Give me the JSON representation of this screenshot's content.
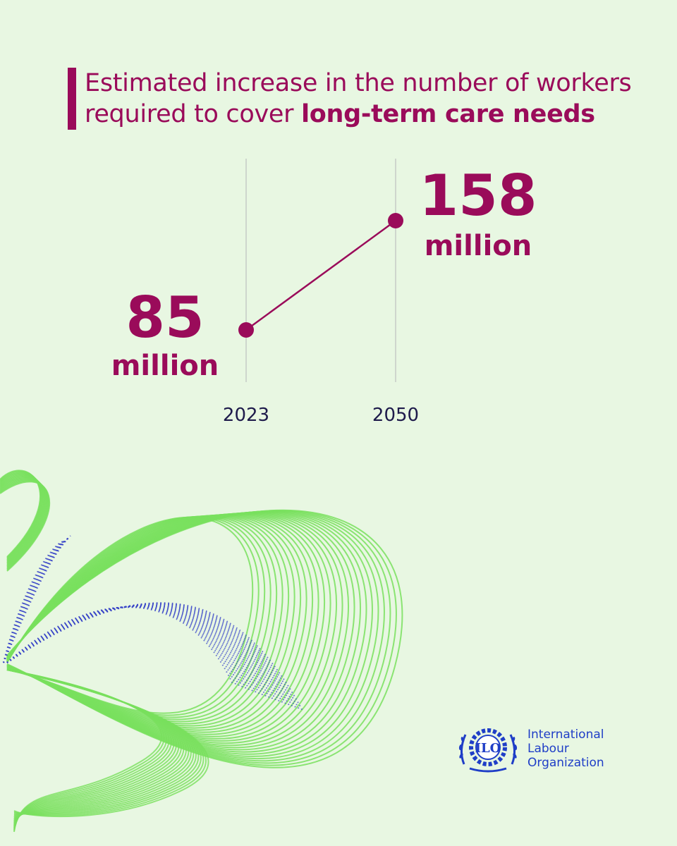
{
  "title": {
    "line1": "Estimated increase in the number of workers",
    "line2_prefix": "required to cover ",
    "line2_bold": "long-term care needs"
  },
  "chart_data": {
    "type": "line",
    "title": "Estimated increase in the number of workers required to cover long-term care needs",
    "x": [
      "2023",
      "2050"
    ],
    "series": [
      {
        "values": [
          85,
          158
        ]
      }
    ],
    "labels": [
      {
        "value": "85",
        "unit": "million"
      },
      {
        "value": "158",
        "unit": "million"
      }
    ]
  },
  "logo": {
    "mark_text": "ILO",
    "lines": [
      "International",
      "Labour",
      "Organization"
    ]
  },
  "colors": {
    "background": "#e8f7e2",
    "accent": "#9a0b5a",
    "axis_text": "#1e1b4b",
    "deco_green": "#79e05e",
    "deco_blue": "#3a45c8",
    "logo_blue": "#1f3ec7"
  }
}
